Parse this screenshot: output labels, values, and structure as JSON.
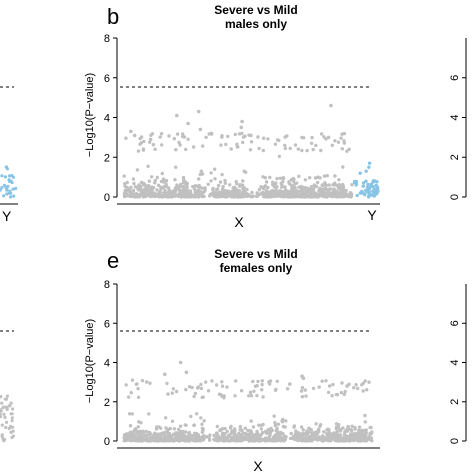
{
  "chart_data": [
    {
      "type": "scatter",
      "panel": "b",
      "title_lines": [
        "Severe vs Mild",
        "males only"
      ],
      "ylabel": "−Log10(P−value)",
      "ylim": [
        0,
        8
      ],
      "yticks": [
        "0",
        "2",
        "4",
        "6",
        "8"
      ],
      "threshold": 5.6,
      "chromosome_labels": [
        "X",
        "Y"
      ],
      "colors": {
        "X": "#c0c0c0",
        "Y": "#87c4e6"
      },
      "series": [
        {
          "chrom": "X",
          "baseline_max": 2.3,
          "top_hits": [
            4.6,
            4.3,
            4.1,
            3.8,
            3.7,
            3.5,
            3.4,
            3.3,
            3.2,
            3.1,
            3.0,
            2.9
          ]
        },
        {
          "chrom": "Y",
          "baseline_max": 0.9,
          "top_hits": [
            1.7,
            1.5,
            1.3,
            1.2
          ]
        }
      ]
    },
    {
      "type": "scatter",
      "panel": "e",
      "title_lines": [
        "Severe vs Mild",
        "females only"
      ],
      "ylabel": "−Log10(P−value)",
      "ylim": [
        0,
        8
      ],
      "yticks": [
        "0",
        "2",
        "4",
        "6",
        "8"
      ],
      "threshold": 5.6,
      "chromosome_labels": [
        "X"
      ],
      "colors": {
        "X": "#c0c0c0"
      },
      "series": [
        {
          "chrom": "X",
          "baseline_max": 2.2,
          "top_hits": [
            4.0,
            3.5,
            3.4,
            3.3,
            3.2,
            3.0,
            2.9,
            2.8
          ]
        }
      ]
    },
    {
      "type": "scatter",
      "panel": "partial-left-top",
      "ylim": [
        0,
        8
      ],
      "threshold": 5.6,
      "chromosome_labels": [
        "Y"
      ],
      "colors": {
        "Y": "#87c4e6"
      }
    },
    {
      "type": "scatter",
      "panel": "partial-right",
      "yticks": [
        "0",
        "2",
        "4",
        "6"
      ]
    }
  ]
}
